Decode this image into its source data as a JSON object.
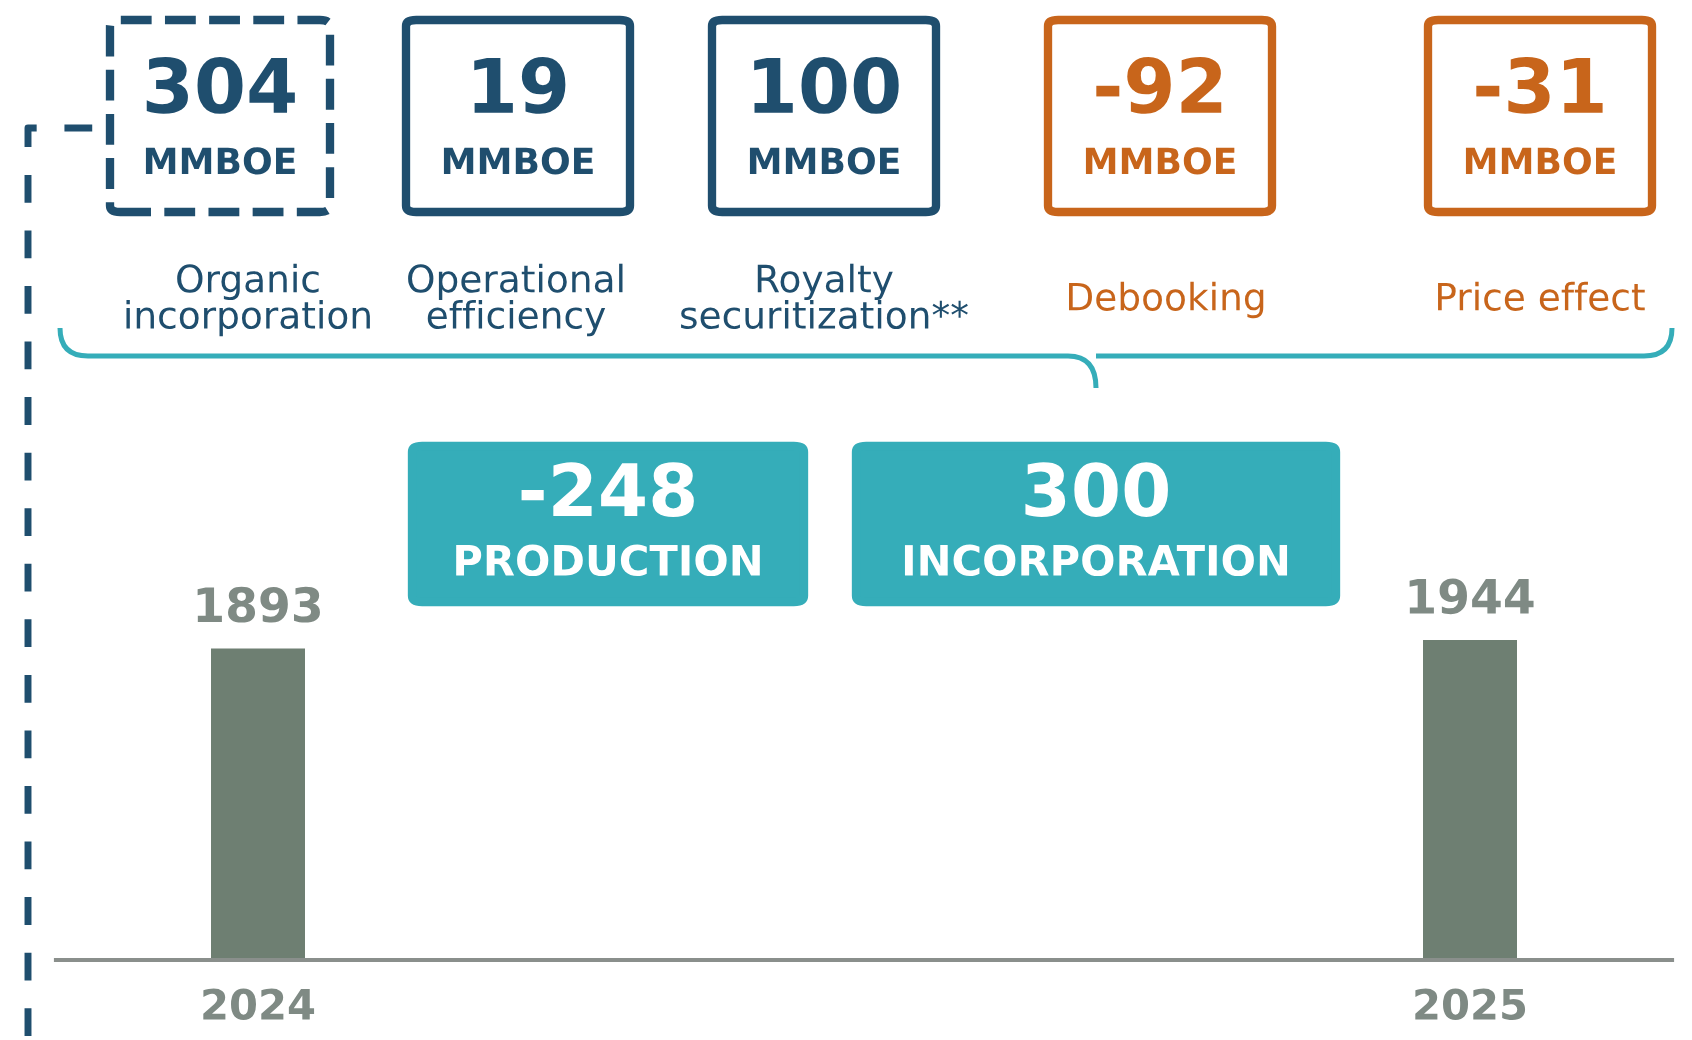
{
  "chart_data": {
    "type": "bar",
    "categories": [
      "2024",
      "2025"
    ],
    "values": [
      1893,
      1944
    ],
    "color": "#6e7f72",
    "tick_labels": "x",
    "data_labels": true,
    "grid": false,
    "annotations": [
      "304\nMMBOE",
      "19\nMMBOE",
      "100\nMMBOE",
      "-92\nMMBOE",
      "-31\nMMBOE",
      "Organic\nincorporation",
      "Operational\nefficiency",
      "Royalty\nsecuritization**",
      "Debooking",
      "Price effect",
      "-248\nPRODUCTION",
      "300\nINCORPORATION"
    ]
  }
}
